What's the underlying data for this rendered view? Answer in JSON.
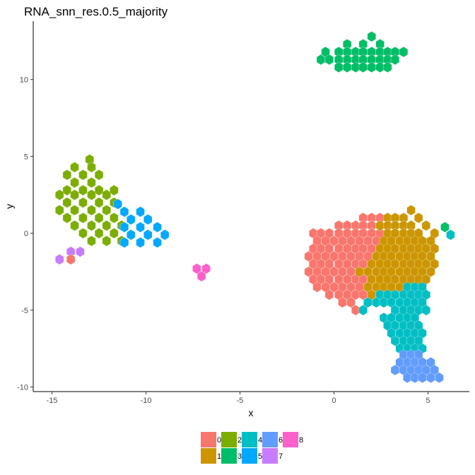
{
  "chart_data": {
    "type": "hexbin",
    "title": "RNA_snn_res.0.5_majority",
    "xlabel": "x",
    "ylabel": "y",
    "xlim": [
      -16,
      7.2
    ],
    "ylim": [
      -10.3,
      13.8
    ],
    "x_ticks": [
      -15,
      -10,
      -5,
      0,
      5
    ],
    "y_ticks": [
      -10,
      -5,
      0,
      5,
      10
    ],
    "x_tick_labels": [
      "-15",
      "-10",
      "-5",
      "0",
      "5"
    ],
    "y_tick_labels": [
      "-10",
      "-5",
      "0",
      "5",
      "10"
    ],
    "grid": false,
    "legend_position": "bottom",
    "hex_dx": 0.43,
    "hex_dy": 0.495,
    "categories": [
      "0",
      "1",
      "2",
      "3",
      "4",
      "5",
      "6",
      "7",
      "8"
    ],
    "colors": {
      "0": "#F8766D",
      "1": "#CD9600",
      "2": "#7CAE00",
      "3": "#00BE67",
      "4": "#00BFC4",
      "5": "#00A9FF",
      "6": "#619CFF",
      "7": "#C77CFF",
      "8": "#FF61CC"
    },
    "clusters": [
      {
        "cluster": "3",
        "rows": [
          {
            "y": 12.8,
            "xs": [
              2.0
            ]
          },
          {
            "y": 12.3,
            "xs": [
              0.7,
              1.55,
              2.45
            ]
          },
          {
            "y": 11.8,
            "xs": [
              -0.45,
              0.25,
              0.7,
              1.15,
              1.55,
              2.0,
              2.45,
              2.85,
              3.25,
              3.7
            ]
          },
          {
            "y": 11.3,
            "xs": [
              -0.7,
              -0.25,
              0.25,
              0.7,
              1.15,
              1.55,
              2.0,
              2.45,
              2.85,
              3.25
            ]
          },
          {
            "y": 10.8,
            "xs": [
              0.25,
              0.7,
              1.15,
              1.55,
              2.0,
              2.45,
              2.85
            ]
          }
        ]
      },
      {
        "cluster": "2",
        "rows": [
          {
            "y": 4.8,
            "xs": [
              -13.0
            ]
          },
          {
            "y": 4.3,
            "xs": [
              -13.8,
              -12.9
            ]
          },
          {
            "y": 3.8,
            "xs": [
              -14.2,
              -13.35,
              -12.5
            ]
          },
          {
            "y": 3.3,
            "xs": [
              -13.8,
              -12.9
            ]
          },
          {
            "y": 2.8,
            "xs": [
              -14.2,
              -13.35,
              -12.5,
              -11.7
            ]
          },
          {
            "y": 2.5,
            "xs": [
              -14.6,
              -13.8,
              -12.9,
              -12.1
            ]
          },
          {
            "y": 2.0,
            "xs": [
              -14.2,
              -13.35,
              -12.5,
              -11.7
            ]
          },
          {
            "y": 1.5,
            "xs": [
              -14.6,
              -13.8,
              -12.9,
              -12.1
            ]
          },
          {
            "y": 1.0,
            "xs": [
              -14.2,
              -13.35,
              -12.5,
              -11.7
            ]
          },
          {
            "y": 0.5,
            "xs": [
              -13.8,
              -12.9,
              -12.1,
              -11.3
            ]
          },
          {
            "y": 0.0,
            "xs": [
              -13.35,
              -12.5,
              -11.7
            ]
          },
          {
            "y": -0.5,
            "xs": [
              -12.9,
              -12.1,
              -11.3
            ]
          }
        ]
      },
      {
        "cluster": "5",
        "rows": [
          {
            "y": 1.9,
            "xs": [
              -11.5
            ]
          },
          {
            "y": 1.4,
            "xs": [
              -11.15,
              -10.3
            ]
          },
          {
            "y": 0.9,
            "xs": [
              -10.8,
              -9.9
            ]
          },
          {
            "y": 0.4,
            "xs": [
              -11.15,
              -10.3,
              -9.4
            ]
          },
          {
            "y": -0.1,
            "xs": [
              -10.8,
              -9.9,
              -9.0
            ]
          },
          {
            "y": -0.6,
            "xs": [
              -11.15,
              -10.3,
              -9.4
            ]
          }
        ]
      },
      {
        "cluster": "7",
        "rows": [
          {
            "y": -1.2,
            "xs": [
              -14.0,
              -13.5
            ]
          },
          {
            "y": -1.7,
            "xs": [
              -14.6
            ]
          }
        ]
      },
      {
        "cluster": "0",
        "rows": [
          {
            "y": -1.7,
            "xs": [
              -14.0
            ]
          }
        ]
      },
      {
        "cluster": "8",
        "rows": [
          {
            "y": -2.3,
            "xs": [
              -7.3,
              -6.8
            ]
          },
          {
            "y": -2.8,
            "xs": [
              -7.05
            ]
          }
        ]
      },
      {
        "cluster": "0",
        "rows": [
          {
            "y": 1.0,
            "xs": [
              1.55,
              2.0,
              2.45
            ]
          },
          {
            "y": 0.5,
            "xs": [
              0.25,
              0.7,
              1.15,
              1.55,
              2.0
            ]
          },
          {
            "y": 0.0,
            "xs": [
              -1.1,
              -0.7,
              -0.25,
              0.25,
              0.7,
              1.15,
              1.55,
              2.0,
              2.45
            ]
          },
          {
            "y": -0.5,
            "xs": [
              -0.9,
              -0.45,
              0.0,
              0.45,
              0.9,
              1.35,
              1.8,
              2.25
            ]
          },
          {
            "y": -1.0,
            "xs": [
              -1.1,
              -0.7,
              -0.25,
              0.25,
              0.7,
              1.15,
              1.55,
              2.0
            ]
          },
          {
            "y": -1.5,
            "xs": [
              -1.35,
              -0.9,
              -0.45,
              0.0,
              0.45,
              0.9,
              1.35,
              1.8
            ]
          },
          {
            "y": -2.0,
            "xs": [
              -1.1,
              -0.7,
              -0.25,
              0.25,
              0.7,
              1.15,
              1.55
            ]
          },
          {
            "y": -2.5,
            "xs": [
              -1.35,
              -0.9,
              -0.45,
              0.0,
              0.45,
              0.9,
              1.35
            ]
          },
          {
            "y": -3.0,
            "xs": [
              -1.1,
              -0.7,
              -0.25,
              0.25,
              0.7,
              1.15,
              1.55
            ]
          },
          {
            "y": -3.5,
            "xs": [
              -0.9,
              -0.45,
              0.0,
              0.45,
              0.9,
              1.35
            ]
          },
          {
            "y": -4.0,
            "xs": [
              -0.25,
              0.25,
              0.7,
              1.15,
              1.55
            ]
          },
          {
            "y": -4.5,
            "xs": [
              0.45,
              0.9
            ]
          },
          {
            "y": -5.0,
            "xs": [
              1.15
            ]
          }
        ]
      },
      {
        "cluster": "1",
        "rows": [
          {
            "y": 1.5,
            "xs": [
              4.1
            ]
          },
          {
            "y": 1.0,
            "xs": [
              2.85,
              3.25,
              3.7,
              4.5
            ]
          },
          {
            "y": 0.5,
            "xs": [
              2.45,
              2.85,
              3.25,
              3.7,
              4.1,
              4.9
            ]
          },
          {
            "y": 0.0,
            "xs": [
              2.85,
              3.25,
              3.7,
              4.1,
              4.5,
              5.35
            ]
          },
          {
            "y": -0.5,
            "xs": [
              2.65,
              3.05,
              3.5,
              3.9,
              4.3,
              4.7,
              5.15
            ]
          },
          {
            "y": -1.0,
            "xs": [
              2.45,
              2.85,
              3.25,
              3.7,
              4.1,
              4.5,
              4.9,
              5.35
            ]
          },
          {
            "y": -1.5,
            "xs": [
              2.25,
              2.65,
              3.05,
              3.5,
              3.9,
              4.3,
              4.7,
              5.15
            ]
          },
          {
            "y": -2.0,
            "xs": [
              2.0,
              2.45,
              2.85,
              3.25,
              3.7,
              4.1,
              4.5,
              4.9,
              5.35
            ]
          },
          {
            "y": -2.5,
            "xs": [
              1.35,
              1.8,
              2.25,
              2.65,
              3.05,
              3.5,
              3.9,
              4.3,
              4.7,
              5.15
            ]
          },
          {
            "y": -3.0,
            "xs": [
              2.0,
              2.45,
              2.85,
              3.25,
              3.7,
              4.1,
              4.5,
              4.9
            ]
          },
          {
            "y": -3.5,
            "xs": [
              1.8,
              2.25,
              2.65,
              3.05,
              3.5
            ]
          },
          {
            "y": -4.0,
            "xs": [
              2.0
            ]
          }
        ]
      },
      {
        "cluster": "3",
        "rows": [
          {
            "y": 0.4,
            "xs": [
              5.9
            ]
          }
        ]
      },
      {
        "cluster": "4",
        "rows": [
          {
            "y": -0.1,
            "xs": [
              6.2
            ]
          },
          {
            "y": -3.5,
            "xs": [
              3.9,
              4.3,
              4.7
            ]
          },
          {
            "y": -4.0,
            "xs": [
              2.45,
              2.85,
              3.25,
              3.7,
              4.1,
              4.5,
              4.9
            ]
          },
          {
            "y": -4.5,
            "xs": [
              1.8,
              2.25,
              2.65,
              3.05,
              3.5,
              3.9,
              4.3,
              4.7
            ]
          },
          {
            "y": -5.0,
            "xs": [
              1.55,
              3.25,
              3.7,
              4.1,
              4.5,
              4.9
            ]
          },
          {
            "y": -5.5,
            "xs": [
              2.65,
              3.05,
              3.5,
              3.9,
              4.3
            ]
          },
          {
            "y": -6.0,
            "xs": [
              2.85,
              3.25,
              3.7,
              4.1,
              4.5
            ]
          },
          {
            "y": -6.5,
            "xs": [
              3.05,
              3.5,
              3.9,
              4.3,
              4.7
            ]
          },
          {
            "y": -7.0,
            "xs": [
              3.25,
              3.7,
              4.1,
              4.5
            ]
          },
          {
            "y": -7.5,
            "xs": [
              3.5,
              3.9,
              4.3,
              4.7
            ]
          }
        ]
      },
      {
        "cluster": "6",
        "rows": [
          {
            "y": -7.9,
            "xs": [
              3.7,
              4.1,
              4.5
            ]
          },
          {
            "y": -8.4,
            "xs": [
              3.5,
              3.9,
              4.3,
              4.7,
              5.15
            ]
          },
          {
            "y": -8.9,
            "xs": [
              3.25,
              3.7,
              4.1,
              4.5,
              4.9,
              5.35
            ]
          },
          {
            "y": -9.4,
            "xs": [
              3.9,
              4.3,
              4.7,
              5.15,
              5.6
            ]
          }
        ]
      }
    ]
  }
}
